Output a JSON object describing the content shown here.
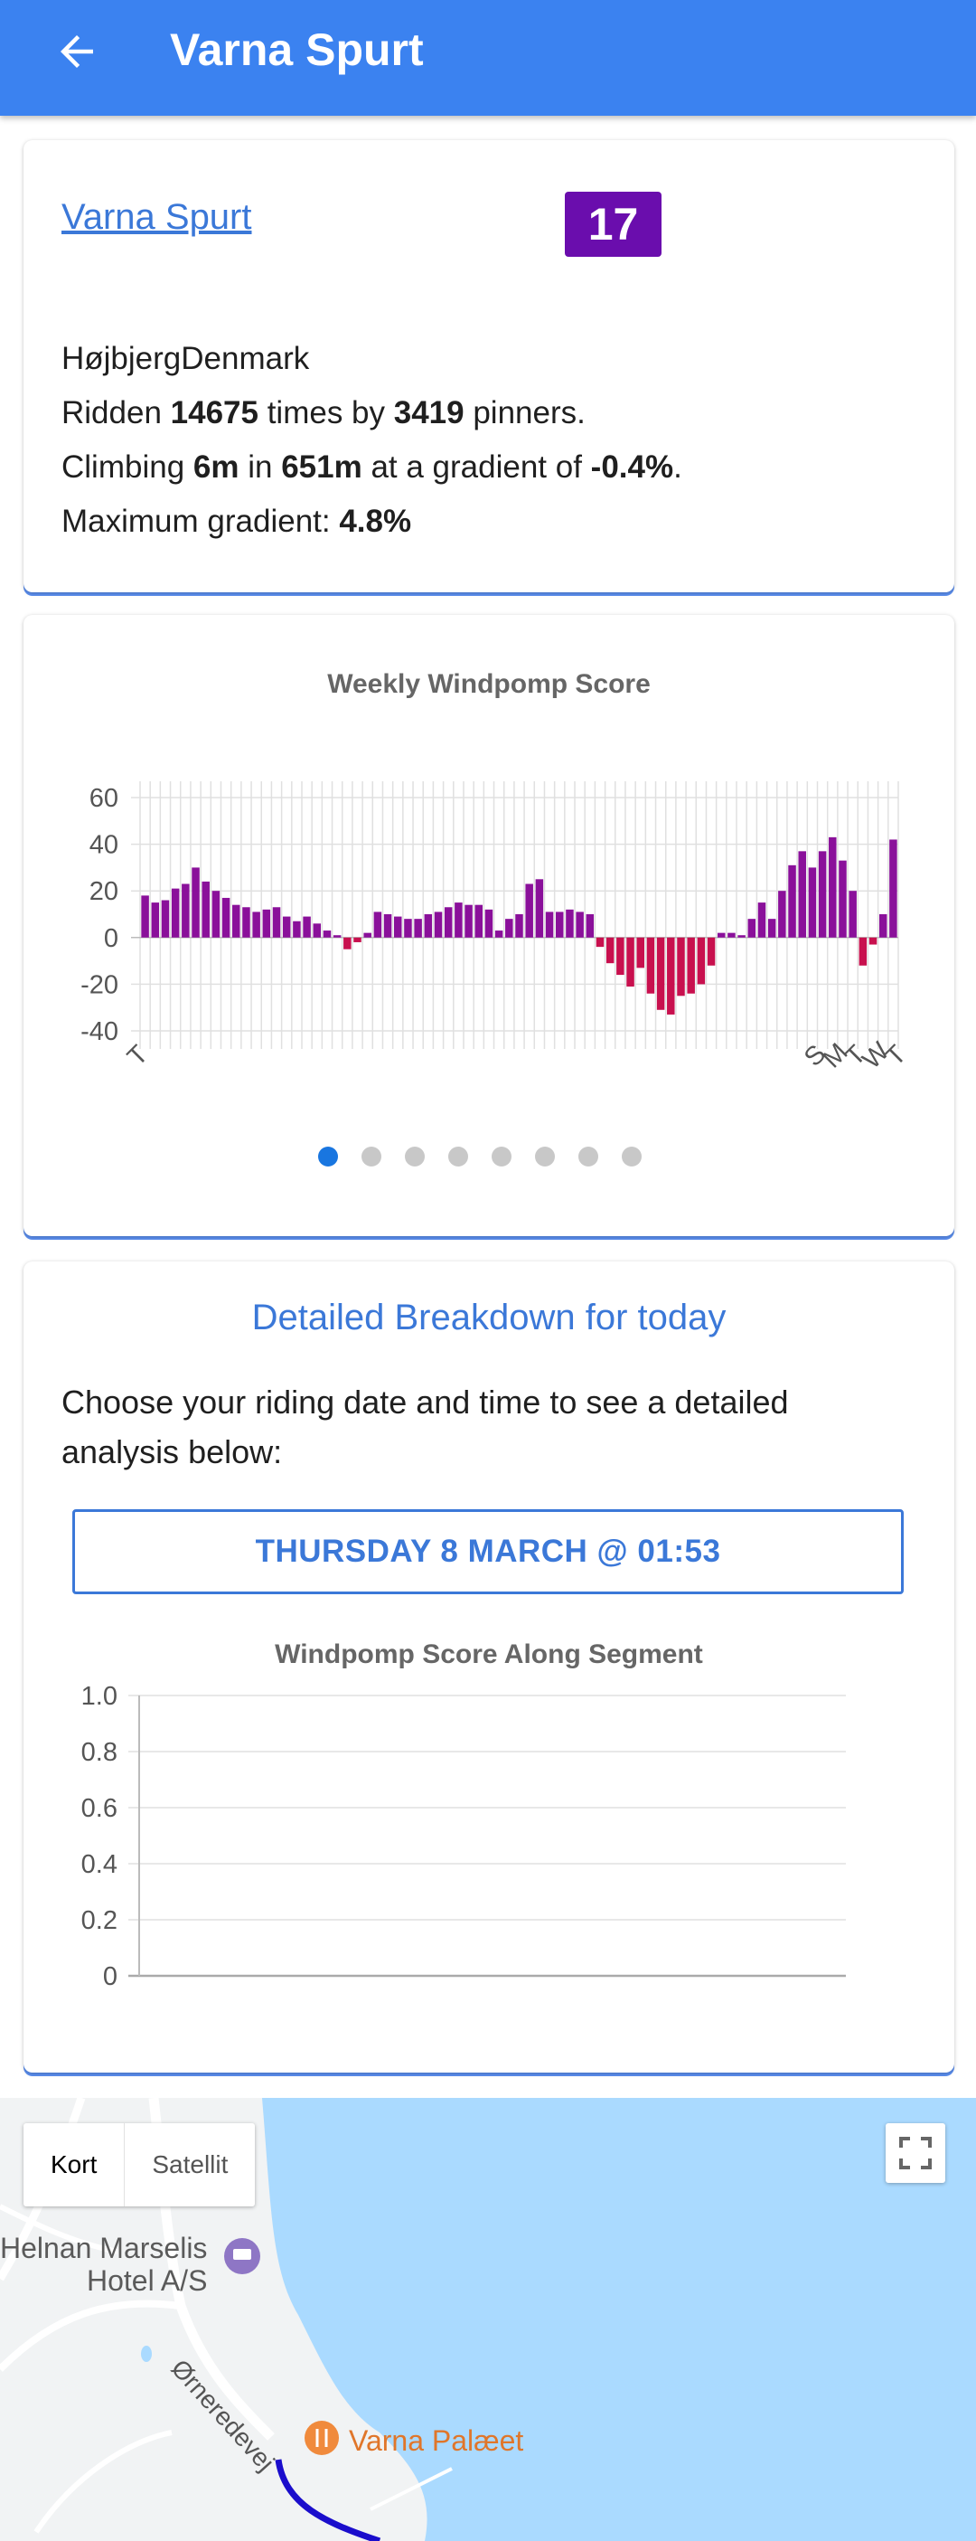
{
  "appbar": {
    "title": "Varna Spurt"
  },
  "segment": {
    "name": "Varna Spurt",
    "rank": "17",
    "location": "HøjbjergDenmark",
    "ridden_prefix": "Ridden ",
    "ridden_count": "14675",
    "ridden_mid": " times by ",
    "pinners": "3419",
    "ridden_suffix": " pinners.",
    "climb_prefix": "Climbing ",
    "climb": "6m",
    "climb_mid": " in ",
    "distance": "651m",
    "climb_mid2": " at a gradient of ",
    "gradient": "-0.4%",
    "climb_suffix": ".",
    "max_label": "Maximum gradient: ",
    "max_gradient": "4.8%"
  },
  "weekly_chart": {
    "chart_data": {
      "type": "bar",
      "title": "Weekly Windpomp Score",
      "ylim": [
        -40,
        60
      ],
      "yticks": [
        "60",
        "40",
        "20",
        "0",
        "-20",
        "-40"
      ],
      "xtick_labels": [
        "T",
        "S",
        "M",
        "T",
        "W",
        "T"
      ],
      "values": [
        18,
        15,
        16,
        21,
        23,
        30,
        24,
        20,
        17,
        14,
        13,
        11,
        12,
        13,
        9,
        7,
        9,
        6,
        3,
        1,
        -5,
        -2,
        2,
        11,
        10,
        9,
        8,
        8,
        10,
        11,
        13,
        15,
        14,
        14,
        12,
        3,
        8,
        10,
        23,
        25,
        11,
        11,
        12,
        11,
        10,
        -4,
        -11,
        -16,
        -21,
        -13,
        -24,
        -31,
        -33,
        -25,
        -24,
        -20,
        -12,
        2,
        2,
        1,
        8,
        15,
        8,
        20,
        31,
        37,
        30,
        37,
        43,
        33,
        20,
        -12,
        -3,
        10,
        42
      ]
    },
    "page_count": 8,
    "active_page": 0
  },
  "breakdown": {
    "heading": "Detailed Breakdown for today",
    "instruction": "Choose your riding date and time to see a detailed analysis below:",
    "date_button": "THURSDAY 8 MARCH @ 01:53",
    "chart_data": {
      "type": "line",
      "title": "Windpomp Score Along Segment",
      "ylim": [
        0,
        1
      ],
      "yticks": [
        "1.0",
        "0.8",
        "0.6",
        "0.4",
        "0.2",
        "0"
      ],
      "series": []
    }
  },
  "map": {
    "toggle_map": "Kort",
    "toggle_satellite": "Satellit",
    "hotel_line1": "Helnan Marselis",
    "hotel_line2": "Hotel A/S",
    "restaurant": "Varna Palæet",
    "street": "Ørneredevej",
    "colors": {
      "water": "#aadaff",
      "land": "#f1f3f4",
      "route": "#1a0dcc"
    }
  },
  "colors": {
    "appbar": "#3b82f0",
    "rank_badge": "#6a0dad",
    "positive_bar": "#8a109a",
    "negative_bar": "#c8104e",
    "link": "#3b78d8"
  }
}
